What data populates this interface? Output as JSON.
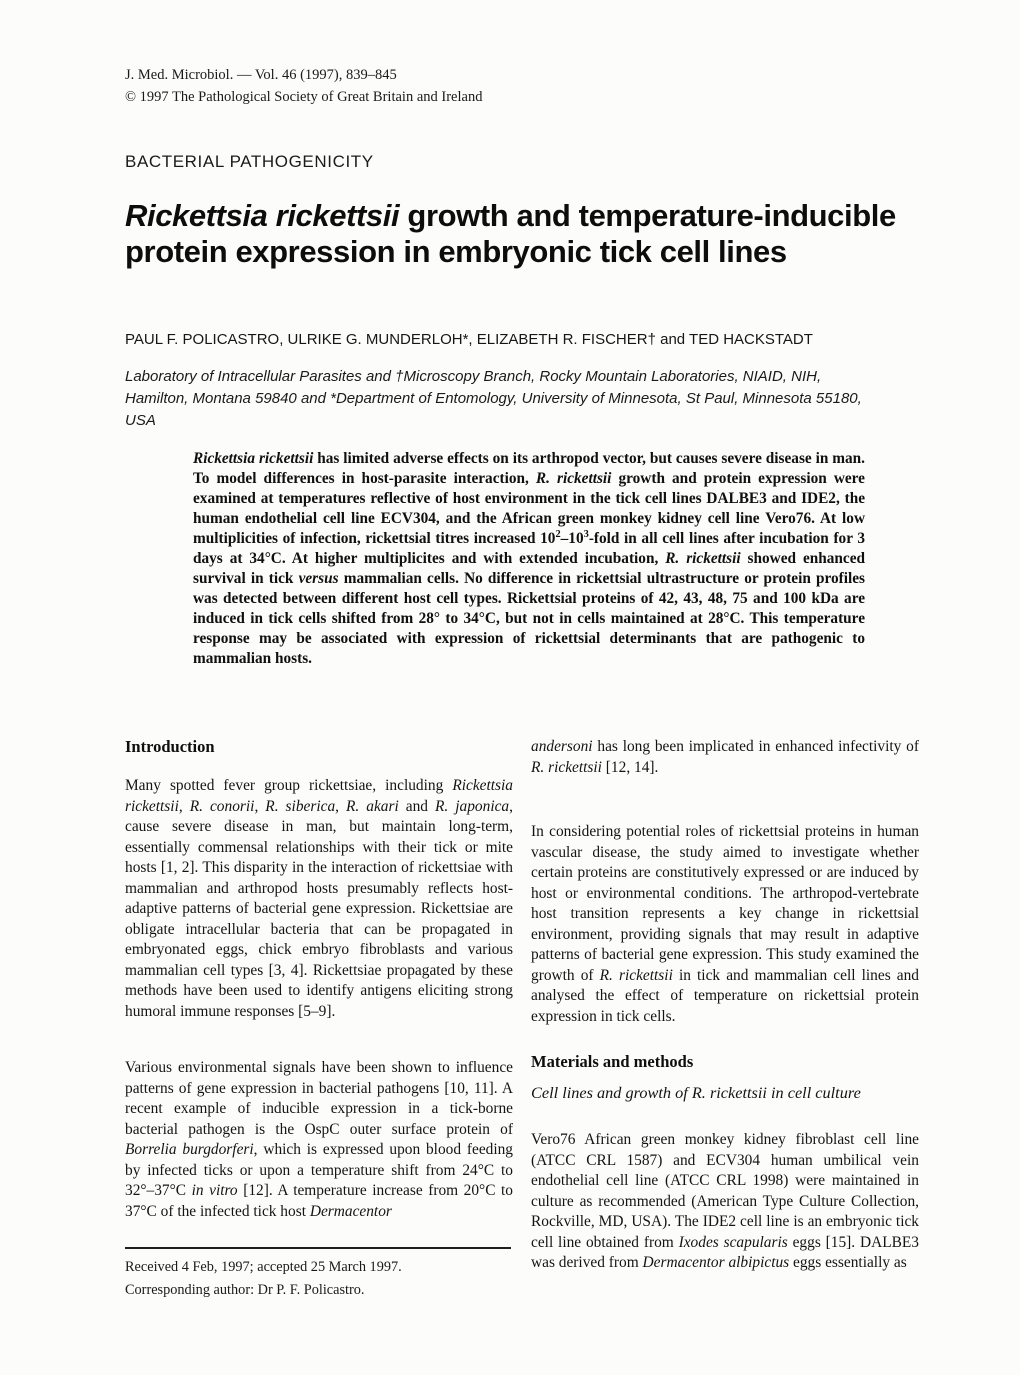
{
  "journal_header": {
    "line1": "J. Med. Microbiol. — Vol. 46 (1997), 839–845",
    "line2": "© 1997 The Pathological Society of Great Britain and Ireland"
  },
  "section_label": "BACTERIAL PATHOGENICITY",
  "title_segments": [
    [
      "i",
      "Rickettsia rickettsii"
    ],
    [
      "t",
      " growth and temperature-inducible protein expression in embryonic tick cell lines"
    ]
  ],
  "authors": "PAUL F. POLICASTRO, ULRIKE G. MUNDERLOH*, ELIZABETH R. FISCHER† and TED HACKSTADT",
  "affiliation": "Laboratory of Intracellular Parasites and †Microscopy Branch, Rocky Mountain Laboratories, NIAID, NIH, Hamilton, Montana 59840 and *Department of Entomology, University of Minnesota, St Paul, Minnesota 55180, USA",
  "abstract": {
    "segments": [
      [
        "i",
        "Rickettsia rickettsii"
      ],
      [
        "t",
        " has limited adverse effects on its arthropod vector, but causes severe disease in man. To model differences in host-parasite interaction, "
      ],
      [
        "i",
        "R. rickettsii"
      ],
      [
        "t",
        " growth and protein expression were examined at temperatures reflective of host environment in the tick cell lines DALBE3 and IDE2, the human endothelial cell line ECV304, and the African green monkey kidney cell line Vero76. At low multiplicities of infection, rickettsial titres increased 10"
      ],
      [
        "sup",
        "2"
      ],
      [
        "t",
        "–10"
      ],
      [
        "sup",
        "3"
      ],
      [
        "t",
        "-fold in all cell lines after incubation for 3 days at 34°C. At higher multiplicites and with extended incubation, "
      ],
      [
        "i",
        "R. rickettsii"
      ],
      [
        "t",
        " showed enhanced survival in tick "
      ],
      [
        "i",
        "versus"
      ],
      [
        "t",
        " mammalian cells. No difference in rickettsial ultrastructure or protein profiles was detected between different host cell types. Rickettsial proteins of 42, 43, 48, 75 and 100 kDa are induced in tick cells shifted from 28° to 34°C, but not in cells maintained at 28°C. This temperature response may be associated with expression of rickettsial determinants that are pathogenic to mammalian hosts."
      ]
    ]
  },
  "introduction": {
    "heading": "Introduction",
    "para1_segments": [
      [
        "t",
        "Many spotted fever group rickettsiae, including "
      ],
      [
        "i",
        "Rickettsia rickettsii"
      ],
      [
        "t",
        ", "
      ],
      [
        "i",
        "R. conorii"
      ],
      [
        "t",
        ", "
      ],
      [
        "i",
        "R. siberica"
      ],
      [
        "t",
        ", "
      ],
      [
        "i",
        "R. akari"
      ],
      [
        "t",
        " and "
      ],
      [
        "i",
        "R. japonica"
      ],
      [
        "t",
        ", cause severe disease in man, but maintain long-term, essentially commensal relationships with their tick or mite hosts [1, 2]. This disparity in the interaction of rickettsiae with mammalian and arthropod hosts presumably reflects host-adaptive patterns of bacterial gene expression. Rickettsiae are obligate intracellular bacteria that can be propagated in embryonated eggs, chick embryo fibroblasts and various mammalian cell types [3, 4]. Rickettsiae propagated by these methods have been used to identify antigens eliciting strong humoral immune responses [5–9]."
      ]
    ],
    "para2_segments": [
      [
        "t",
        "Various environmental signals have been shown to influence patterns of gene expression in bacterial pathogens [10, 11]. A recent example of inducible expression in a tick-borne bacterial pathogen is the OspC outer surface protein of "
      ],
      [
        "i",
        "Borrelia burgdorferi"
      ],
      [
        "t",
        ", which is expressed upon blood feeding by infected ticks or upon a temperature shift from 24°C to 32°–37°C "
      ],
      [
        "i",
        "in vitro"
      ],
      [
        "t",
        " [12]. A temperature increase from 20°C to 37°C of the infected tick host "
      ],
      [
        "i",
        "Dermacentor"
      ]
    ],
    "para3_segments": [
      [
        "i",
        "andersoni"
      ],
      [
        "t",
        " has long been implicated in enhanced infectivity of "
      ],
      [
        "i",
        "R. rickettsii"
      ],
      [
        "t",
        " [12, 14]."
      ]
    ],
    "para4_segments": [
      [
        "t",
        "In considering potential roles of rickettsial proteins in human vascular disease, the study aimed to investigate whether certain proteins are constitutively expressed or are induced by host or environmental conditions. The arthropod-vertebrate host transition represents a key change in rickettsial environment, providing signals that may result in adaptive patterns of bacterial gene expression. This study examined the growth of "
      ],
      [
        "i",
        "R. rickettsii"
      ],
      [
        "t",
        " in tick and mammalian cell lines and analysed the effect of temperature on rickettsial protein expression in tick cells."
      ]
    ]
  },
  "materials": {
    "heading": "Materials and methods",
    "subheading_segments": [
      [
        "i",
        "Cell lines and growth of R. rickettsii in cell culture"
      ]
    ],
    "para1_segments": [
      [
        "t",
        "Vero76 African green monkey kidney fibroblast cell line (ATCC CRL 1587) and ECV304 human umbilical vein endothelial cell line (ATCC CRL 1998) were maintained in culture as recommended (American Type Culture Collection, Rockville, MD, USA). The IDE2 cell line is an embryonic tick cell line obtained from "
      ],
      [
        "i",
        "Ixodes scapularis"
      ],
      [
        "t",
        " eggs [15]. DALBE3 was derived from "
      ],
      [
        "i",
        "Dermacentor albipictus"
      ],
      [
        "t",
        " eggs essentially as"
      ]
    ]
  },
  "footnote": {
    "line1": "Received 4 Feb, 1997; accepted 25 March 1997.",
    "line2": "Corresponding author: Dr P. F. Policastro."
  }
}
